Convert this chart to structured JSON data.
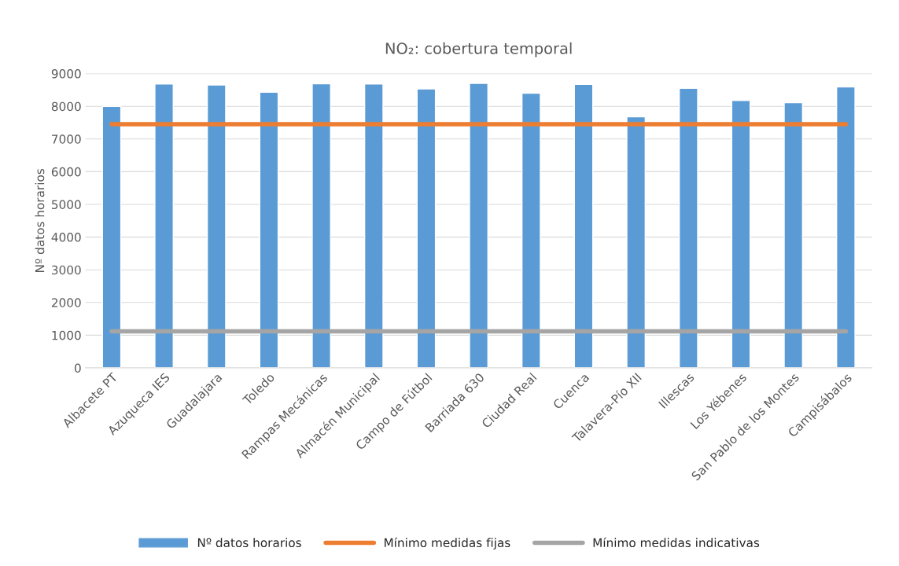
{
  "chart_data": {
    "type": "bar",
    "title": "NO₂: cobertura temporal",
    "ylabel": "Nº datos horarios",
    "categories": [
      "Albacete PT",
      "Azuqueca IES",
      "Guadalajara",
      "Toledo",
      "Rampas Mecánicas",
      "Almacén Municipal",
      "Campo de Fútbol",
      "Barriada 630",
      "Ciudad Real",
      "Cuenca",
      "Talavera-Pío XII",
      "Illescas",
      "Los Yébenes",
      "San Pablo de los Montes",
      "Campisábalos"
    ],
    "series": [
      {
        "name": "Nº datos horarios",
        "color": "#5b9bd5",
        "values": [
          8000,
          8680,
          8650,
          8430,
          8690,
          8680,
          8530,
          8700,
          8400,
          8670,
          7680,
          8550,
          8180,
          8110,
          8590
        ]
      },
      {
        "name": "Mínimo medidas fijas",
        "type": "line",
        "color": "#ed7d31",
        "values": [
          7450,
          7450,
          7450,
          7450,
          7450,
          7450,
          7450,
          7450,
          7450,
          7450,
          7450,
          7450,
          7450,
          7450,
          7450
        ]
      },
      {
        "name": "Mínimo medidas indicativas",
        "type": "line",
        "color": "#a5a5a5",
        "values": [
          1120,
          1120,
          1120,
          1120,
          1120,
          1120,
          1120,
          1120,
          1120,
          1120,
          1120,
          1120,
          1120,
          1120,
          1120
        ]
      }
    ],
    "ylim": [
      0,
      9000
    ],
    "yticks": [
      0,
      1000,
      2000,
      3000,
      4000,
      5000,
      6000,
      7000,
      8000,
      9000
    ],
    "grid": "y",
    "legend": "bottom"
  }
}
